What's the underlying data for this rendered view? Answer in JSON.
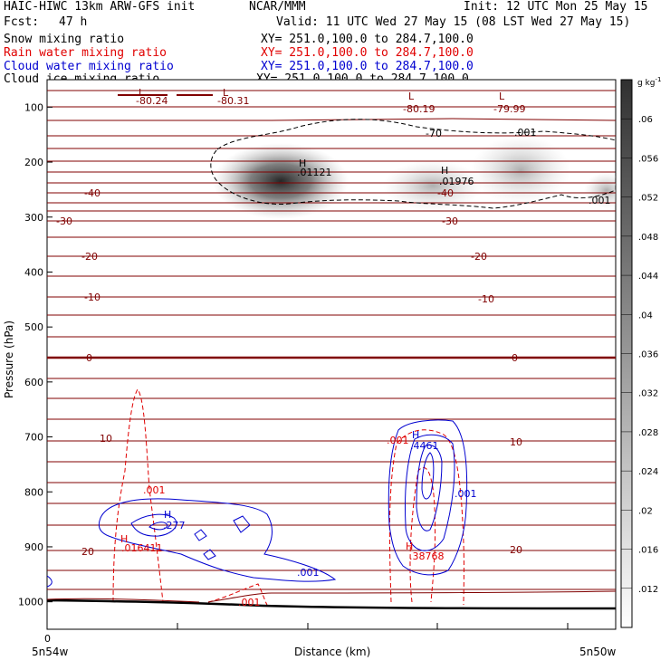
{
  "header": {
    "model": "HAIC-HIWC 13km ARW-GFS init",
    "org": "NCAR/MMM",
    "init": "Init: 12 UTC Mon 25 May 15",
    "fcst_label": "Fcst:",
    "fcst_value": "47 h",
    "valid": "Valid: 11 UTC Wed 27 May 15 (08 LST Wed 27 May 15)",
    "fields": [
      {
        "name": "Snow mixing ratio",
        "xy": "XY= 251.0,100.0 to 284.7,100.0",
        "color": "#000000"
      },
      {
        "name": "Rain water mixing ratio",
        "xy": "XY= 251.0,100.0 to 284.7,100.0",
        "color": "#e00000"
      },
      {
        "name": "Cloud water mixing ratio",
        "xy": "XY= 251.0,100.0 to 284.7,100.0",
        "color": "#0000d0"
      },
      {
        "name": "Cloud ice mixing ratio",
        "xy": "XY= 251.0,100.0 to 284.7,100.0",
        "color": "#000000"
      }
    ]
  },
  "chart_data": {
    "type": "contour",
    "ylabel": "Pressure (hPa)",
    "xlabel": "Distance (km)",
    "y_ticks": [
      100,
      200,
      300,
      400,
      500,
      600,
      700,
      800,
      900,
      1000
    ],
    "ylim": [
      1050,
      50
    ],
    "x_tick_label_zero": "0",
    "x_left_label": "5n54w",
    "x_right_label": "5n50w",
    "colorbar": {
      "unit": "g kg",
      "unit_sup": "-1",
      "levels": [
        ".012",
        ".016",
        ".02",
        ".024",
        ".028",
        ".032",
        ".036",
        ".04",
        ".044",
        ".048",
        ".052",
        ".056",
        ".06"
      ]
    },
    "temperature_contour_labels": [
      {
        "value": "-80.24"
      },
      {
        "value": "-80.31"
      },
      {
        "value": "-80.19"
      },
      {
        "value": "-79.99"
      },
      {
        "value": "-70"
      },
      {
        "value": "-40"
      },
      {
        "value": "-40"
      },
      {
        "value": "-30"
      },
      {
        "value": "-30"
      },
      {
        "value": "-20"
      },
      {
        "value": "-20"
      },
      {
        "value": "-10"
      },
      {
        "value": "-10"
      },
      {
        "value": "0"
      },
      {
        "value": "0"
      },
      {
        "value": "10"
      },
      {
        "value": "10"
      },
      {
        "value": "20"
      },
      {
        "value": "20"
      }
    ],
    "annotations": [
      {
        "text": "L",
        "color": "#800000"
      },
      {
        "text": "L",
        "color": "#800000"
      },
      {
        "text": "L",
        "color": "#800000"
      },
      {
        "text": "L",
        "color": "#800000"
      },
      {
        "text": "H",
        "color": "#000000"
      },
      {
        "text": ".01121",
        "color": "#000000"
      },
      {
        "text": "H",
        "color": "#000000"
      },
      {
        "text": ".01976",
        "color": "#000000"
      },
      {
        "text": ".001",
        "color": "#000000"
      },
      {
        "text": ".001",
        "color": "#000000"
      },
      {
        "text": ".001",
        "color": "#e00000"
      },
      {
        "text": "H",
        "color": "#e00000"
      },
      {
        "text": ".016411",
        "color": "#e00000"
      },
      {
        "text": "H",
        "color": "#0000d0"
      },
      {
        "text": ".277",
        "color": "#0000d0"
      },
      {
        "text": ".001",
        "color": "#0000d0"
      },
      {
        "text": ".001",
        "color": "#e00000"
      },
      {
        "text": ".001",
        "color": "#e00000"
      },
      {
        "text": "H",
        "color": "#0000d0"
      },
      {
        "text": ".4461",
        "color": "#0000d0"
      },
      {
        "text": ".001",
        "color": "#0000d0"
      },
      {
        "text": "H",
        "color": "#e00000"
      },
      {
        "text": ".38768",
        "color": "#e00000"
      }
    ]
  }
}
